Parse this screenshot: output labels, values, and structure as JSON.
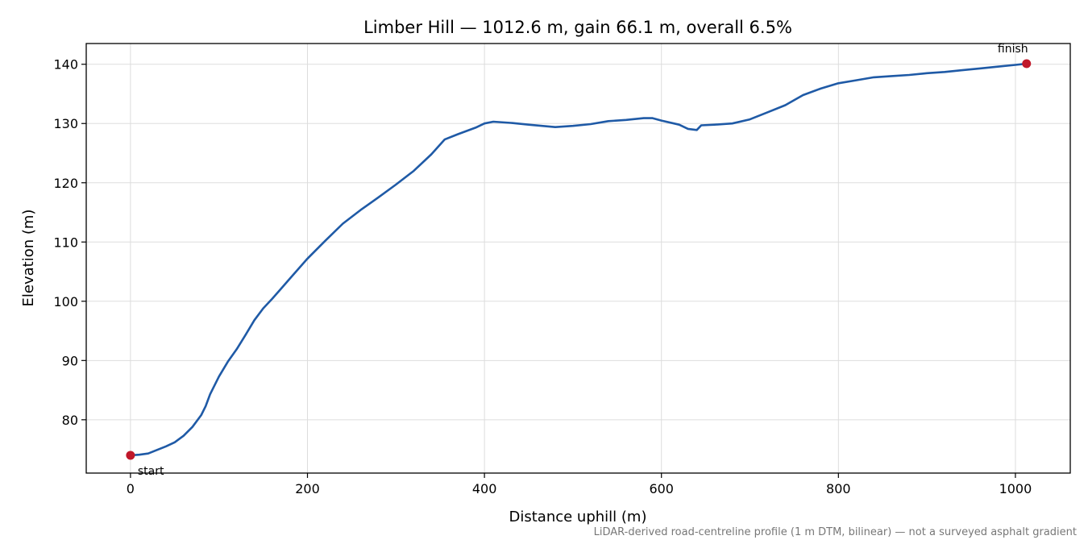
{
  "chart_data": {
    "type": "line",
    "title": "Limber Hill — 1012.6 m, gain 66.1 m, overall 6.5%",
    "xlabel": "Distance uphill (m)",
    "ylabel": "Elevation (m)",
    "xlim": [
      -50,
      1062
    ],
    "ylim": [
      71,
      143.5
    ],
    "xticks": [
      0,
      200,
      400,
      600,
      800,
      1000
    ],
    "yticks": [
      80,
      90,
      100,
      110,
      120,
      130,
      140
    ],
    "grid": true,
    "footnote": "LiDAR-derived road-centreline profile (1 m DTM, bilinear) — not a surveyed asphalt gradient",
    "series": [
      {
        "color": "#1f5aa6",
        "x": [
          0,
          10,
          20,
          30,
          40,
          50,
          60,
          70,
          80,
          85,
          90,
          100,
          110,
          120,
          130,
          140,
          150,
          160,
          170,
          180,
          200,
          220,
          240,
          260,
          280,
          300,
          320,
          340,
          355,
          370,
          390,
          400,
          410,
          430,
          450,
          480,
          500,
          520,
          540,
          560,
          580,
          590,
          600,
          620,
          630,
          640,
          645,
          660,
          680,
          700,
          720,
          740,
          760,
          780,
          800,
          820,
          840,
          860,
          880,
          900,
          920,
          940,
          960,
          980,
          1000,
          1012.6
        ],
        "y": [
          74,
          74.1,
          74.3,
          74.9,
          75.5,
          76.2,
          77.3,
          78.8,
          80.8,
          82.3,
          84.3,
          87.3,
          89.8,
          91.9,
          94.3,
          96.8,
          98.8,
          100.4,
          102.1,
          103.8,
          107.2,
          110.2,
          113.1,
          115.4,
          117.5,
          119.7,
          122.0,
          124.8,
          127.3,
          128.2,
          129.3,
          130.0,
          130.3,
          130.1,
          129.8,
          129.4,
          129.6,
          129.9,
          130.4,
          130.6,
          130.9,
          130.9,
          130.5,
          129.8,
          129.1,
          128.9,
          129.7,
          129.8,
          130.0,
          130.7,
          131.9,
          133.1,
          134.8,
          135.9,
          136.8,
          137.3,
          137.8,
          138.0,
          138.2,
          138.5,
          138.7,
          139.0,
          139.3,
          139.6,
          139.9,
          140.1
        ]
      }
    ],
    "markers": [
      {
        "x": 0,
        "y": 74,
        "label": "start",
        "color": "#c0182a"
      },
      {
        "x": 1012.6,
        "y": 140.1,
        "label": "finish",
        "color": "#c0182a"
      }
    ]
  }
}
